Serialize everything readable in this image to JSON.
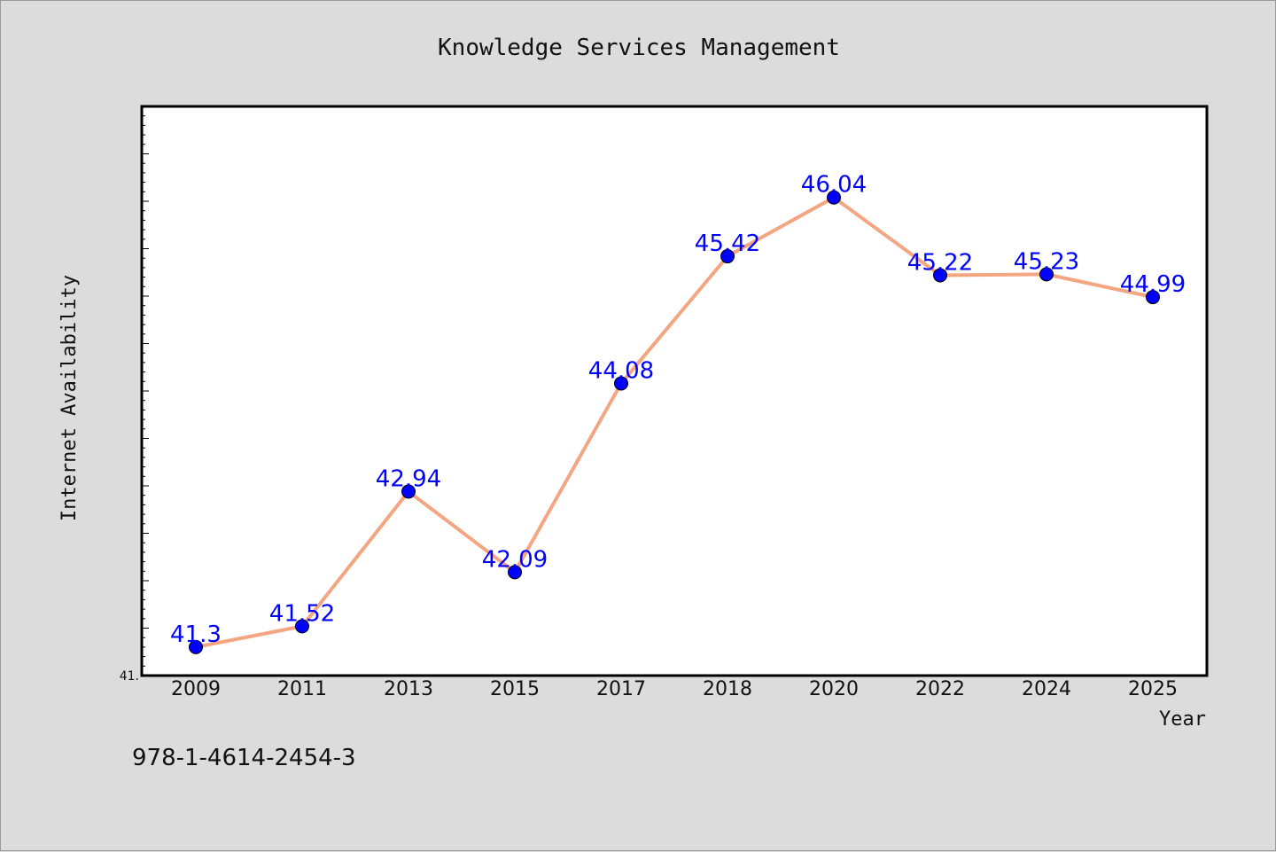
{
  "chart_data": {
    "type": "line",
    "title": "Knowledge Services Management",
    "xlabel": "Year",
    "ylabel": "Internet Availability",
    "categories": [
      "2009",
      "2011",
      "2013",
      "2015",
      "2017",
      "2018",
      "2020",
      "2022",
      "2024",
      "2025"
    ],
    "series": [
      {
        "values": [
          41.3,
          41.52,
          42.94,
          42.09,
          44.08,
          45.42,
          46.04,
          45.22,
          45.23,
          44.99
        ],
        "value_labels": [
          "41.3",
          "41.52",
          "42.94",
          "42.09",
          "44.08",
          "45.42",
          "46.04",
          "45.22",
          "45.23",
          "44.99"
        ]
      }
    ],
    "ylim": [
      41.0,
      47.0
    ],
    "y_tick_labels": [
      {
        "value": 41.0,
        "text": "41."
      }
    ],
    "grid": false,
    "legend": "none",
    "colors": {
      "line": "#f4a582",
      "marker": "#0000ff",
      "data_label": "#0000ff",
      "plot_background": "#ffffff",
      "figure_background": "#dcdcdc"
    }
  },
  "footer": {
    "isbn": "978-1-4614-2454-3"
  }
}
